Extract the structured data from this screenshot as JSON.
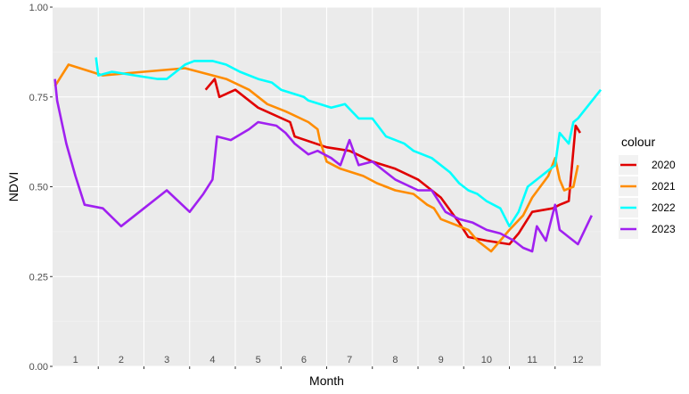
{
  "chart_data": {
    "type": "line",
    "title": "",
    "xlabel": "Month",
    "ylabel": "NDVI",
    "xlim": [
      0.5,
      12.5
    ],
    "ylim": [
      0,
      1
    ],
    "x_tick_labels": [
      "1",
      "2",
      "3",
      "4",
      "5",
      "6",
      "7",
      "8",
      "9",
      "10",
      "11",
      "12"
    ],
    "y_ticks": [
      0.0,
      0.25,
      0.5,
      0.75,
      1.0
    ],
    "y_tick_labels": [
      "0.00",
      "0.25",
      "0.50",
      "0.75",
      "1.00"
    ],
    "grid": true,
    "legend": {
      "title": "colour",
      "position": "right"
    },
    "series": [
      {
        "name": "2020",
        "color": "#e00000",
        "x": [
          3.85,
          4.05,
          4.15,
          4.5,
          5.0,
          5.7,
          5.8,
          6.5,
          7.0,
          7.5,
          8.0,
          8.5,
          9.0,
          9.4,
          9.6,
          10.0,
          10.5,
          10.7,
          11.0,
          11.45,
          11.6,
          11.8,
          11.95,
          12.05
        ],
        "y": [
          0.77,
          0.8,
          0.75,
          0.77,
          0.72,
          0.68,
          0.64,
          0.61,
          0.6,
          0.57,
          0.55,
          0.52,
          0.47,
          0.4,
          0.36,
          0.35,
          0.34,
          0.37,
          0.43,
          0.44,
          0.45,
          0.46,
          0.67,
          0.65
        ]
      },
      {
        "name": "2021",
        "color": "#ff8c00",
        "x": [
          0.55,
          0.85,
          1.6,
          2.5,
          3.4,
          4.3,
          4.8,
          5.2,
          5.6,
          6.1,
          6.3,
          6.35,
          6.5,
          6.8,
          7.3,
          7.6,
          8.0,
          8.4,
          8.6,
          8.7,
          8.85,
          9.0,
          9.2,
          9.6,
          9.8,
          10.1,
          10.5,
          10.8,
          11.0,
          11.35,
          11.5,
          11.6,
          11.7,
          11.9,
          12.0
        ],
        "y": [
          0.78,
          0.84,
          0.81,
          0.82,
          0.83,
          0.8,
          0.77,
          0.73,
          0.71,
          0.68,
          0.66,
          0.63,
          0.57,
          0.55,
          0.53,
          0.51,
          0.49,
          0.48,
          0.46,
          0.45,
          0.44,
          0.41,
          0.4,
          0.38,
          0.35,
          0.32,
          0.38,
          0.42,
          0.47,
          0.53,
          0.58,
          0.52,
          0.49,
          0.5,
          0.56
        ]
      },
      {
        "name": "2022",
        "color": "#00ffff",
        "x": [
          1.45,
          1.5,
          1.8,
          2.3,
          2.8,
          3.0,
          3.4,
          3.6,
          4.0,
          4.3,
          4.6,
          5.0,
          5.3,
          5.5,
          6.0,
          6.1,
          6.6,
          6.9,
          7.2,
          7.5,
          7.8,
          8.0,
          8.2,
          8.4,
          8.8,
          9.2,
          9.4,
          9.6,
          9.8,
          10.0,
          10.3,
          10.5,
          10.7,
          10.9,
          11.0,
          11.2,
          11.4,
          11.5,
          11.6,
          11.8,
          11.9,
          12.0,
          12.5
        ],
        "y": [
          0.86,
          0.81,
          0.82,
          0.81,
          0.8,
          0.8,
          0.84,
          0.85,
          0.85,
          0.84,
          0.82,
          0.8,
          0.79,
          0.77,
          0.75,
          0.74,
          0.72,
          0.73,
          0.69,
          0.69,
          0.64,
          0.63,
          0.62,
          0.6,
          0.58,
          0.54,
          0.51,
          0.49,
          0.48,
          0.46,
          0.44,
          0.39,
          0.43,
          0.5,
          0.51,
          0.53,
          0.55,
          0.56,
          0.65,
          0.62,
          0.68,
          0.69,
          0.77
        ]
      },
      {
        "name": "2023",
        "color": "#a020f0",
        "x": [
          0.55,
          0.6,
          0.8,
          1.0,
          1.2,
          1.6,
          2.0,
          2.5,
          3.0,
          3.5,
          3.8,
          4.0,
          4.1,
          4.4,
          4.8,
          5.0,
          5.4,
          5.6,
          5.8,
          6.1,
          6.3,
          6.6,
          6.8,
          7.0,
          7.2,
          7.5,
          7.8,
          8.0,
          8.5,
          8.8,
          9.1,
          9.4,
          9.7,
          10.0,
          10.3,
          10.6,
          10.8,
          11.0,
          11.1,
          11.3,
          11.5,
          11.6,
          12.0,
          12.3
        ],
        "y": [
          0.8,
          0.74,
          0.62,
          0.53,
          0.45,
          0.44,
          0.39,
          0.44,
          0.49,
          0.43,
          0.48,
          0.52,
          0.64,
          0.63,
          0.66,
          0.68,
          0.67,
          0.65,
          0.62,
          0.59,
          0.6,
          0.58,
          0.56,
          0.63,
          0.56,
          0.57,
          0.54,
          0.52,
          0.49,
          0.49,
          0.43,
          0.41,
          0.4,
          0.38,
          0.37,
          0.35,
          0.33,
          0.32,
          0.39,
          0.35,
          0.45,
          0.38,
          0.34,
          0.42
        ]
      }
    ]
  }
}
